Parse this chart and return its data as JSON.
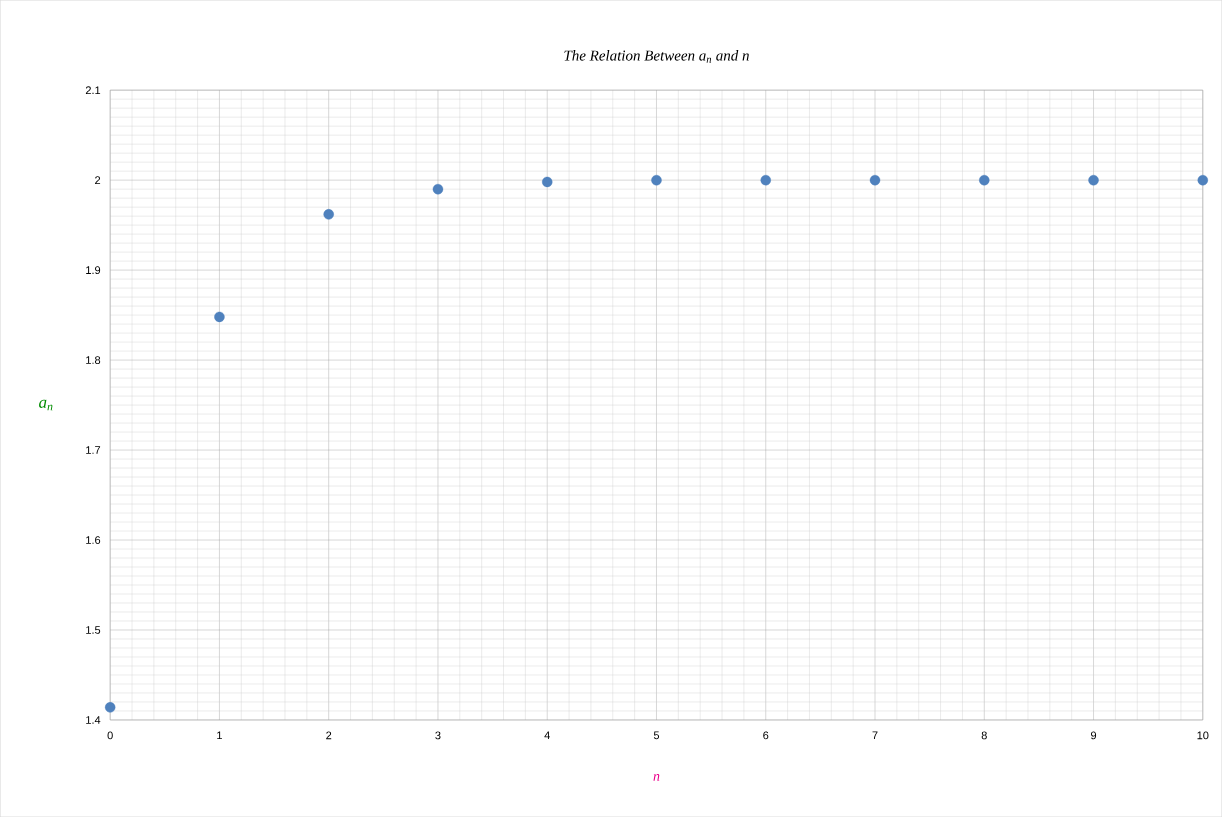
{
  "chart_data": {
    "type": "scatter",
    "title": "The Relation Between a$_{n}$ and n",
    "xlabel": "n",
    "ylabel": "a$_{n}$",
    "x": [
      0,
      1,
      2,
      3,
      4,
      5,
      6,
      7,
      8,
      9,
      10
    ],
    "values": [
      1.414,
      1.848,
      1.962,
      1.99,
      1.998,
      2.0,
      2.0,
      2.0,
      2.0,
      2.0,
      2.0
    ],
    "color": "#4f81bd",
    "marker": "circle",
    "grid": true,
    "xlim": [
      0,
      10
    ],
    "xticks": [
      0,
      1,
      2,
      3,
      4,
      5,
      6,
      7,
      8,
      9,
      10
    ],
    "ylim": [
      1.4,
      2.1
    ],
    "yticks": [
      1.4,
      1.5,
      1.6,
      1.7,
      1.8,
      1.9,
      2,
      2.1
    ]
  }
}
